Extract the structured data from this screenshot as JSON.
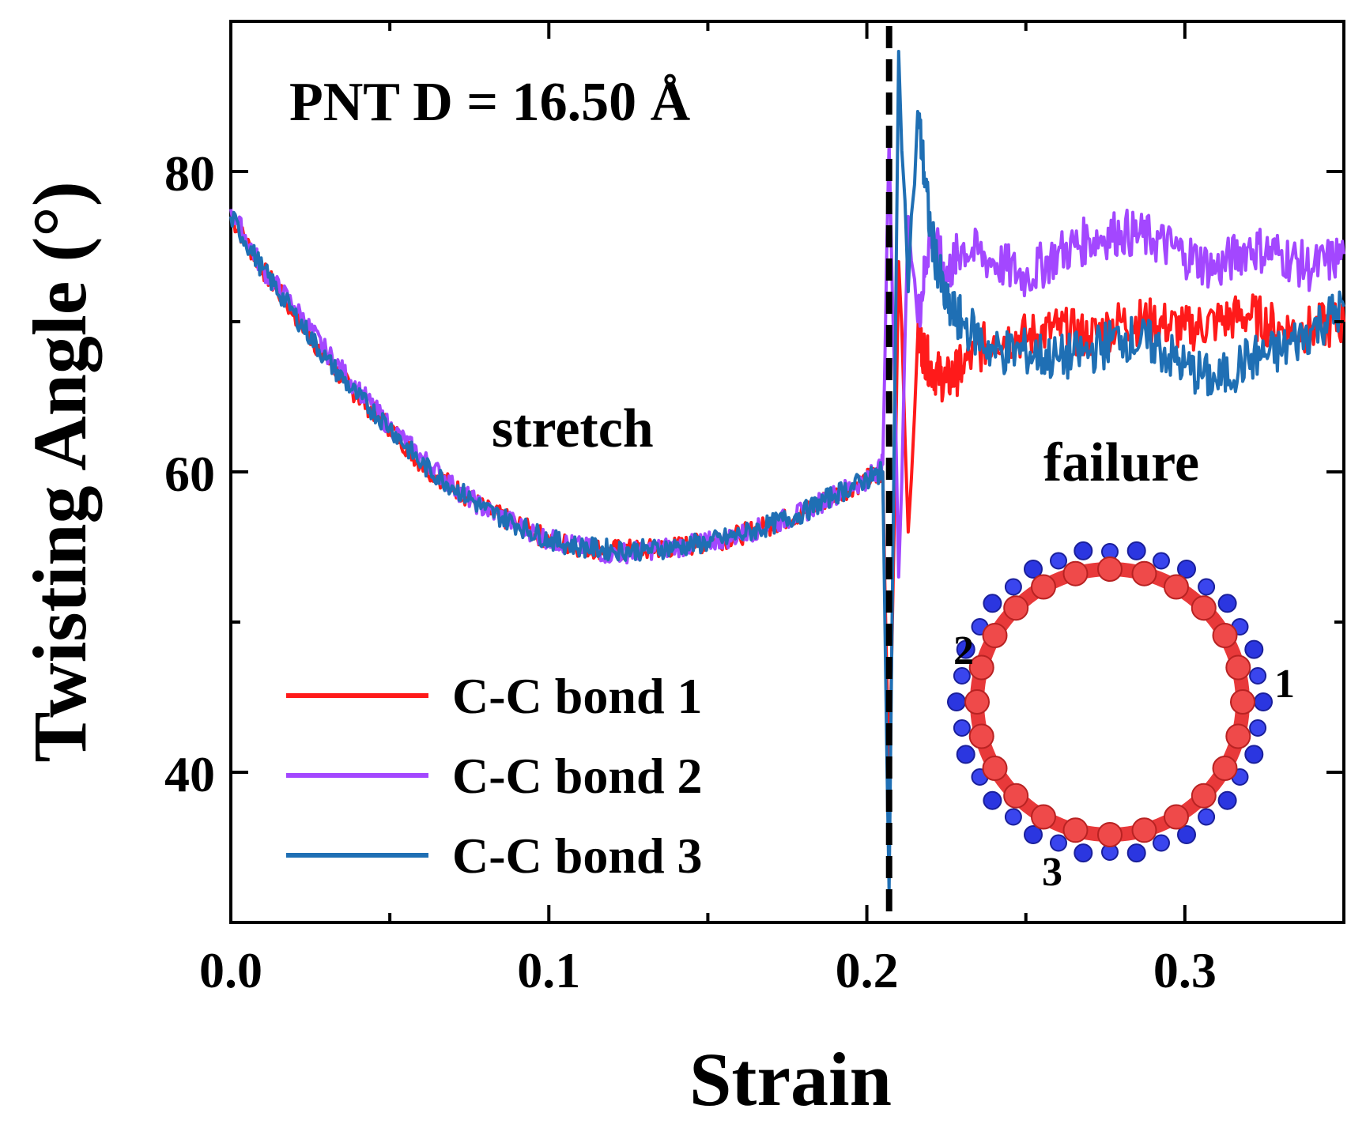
{
  "chart_data": {
    "type": "line",
    "title": "",
    "xlabel": "Strain",
    "ylabel": "Twisting Angle (°)",
    "xlim": [
      0.0,
      0.35
    ],
    "ylim": [
      30,
      90
    ],
    "x_ticks": [
      {
        "value": 0.0,
        "label": "0.0"
      },
      {
        "value": 0.1,
        "label": "0.1"
      },
      {
        "value": 0.2,
        "label": "0.2"
      },
      {
        "value": 0.3,
        "label": "0.3"
      }
    ],
    "y_ticks": [
      {
        "value": 40,
        "label": "40"
      },
      {
        "value": 60,
        "label": "60"
      },
      {
        "value": 80,
        "label": "80"
      }
    ],
    "annotations": {
      "system": "PNT  D = 16.50 Å",
      "stretch": "stretch",
      "failure": "failure"
    },
    "failure_strain": 0.207,
    "series": [
      {
        "name": "C-C bond 1",
        "color": "#ff1a1a",
        "x": [
          0.0,
          0.01,
          0.02,
          0.03,
          0.04,
          0.05,
          0.06,
          0.07,
          0.08,
          0.09,
          0.1,
          0.11,
          0.12,
          0.13,
          0.14,
          0.15,
          0.16,
          0.17,
          0.18,
          0.19,
          0.2,
          0.205,
          0.207,
          0.21,
          0.213,
          0.216,
          0.22,
          0.225,
          0.23,
          0.24,
          0.25,
          0.26,
          0.27,
          0.28,
          0.29,
          0.3,
          0.31,
          0.32,
          0.33,
          0.34,
          0.35
        ],
        "y": [
          77,
          73.5,
          70.5,
          67.5,
          65,
          63,
          60.5,
          59,
          57.5,
          56.5,
          55.5,
          55,
          54.8,
          54.8,
          55,
          55.3,
          55.8,
          56.5,
          57.3,
          58.5,
          59.5,
          60,
          39,
          74,
          56,
          69,
          67,
          66,
          67,
          69,
          69,
          69.5,
          69,
          70,
          70,
          69.5,
          70,
          70.5,
          69.5,
          69.5,
          70
        ]
      },
      {
        "name": "C-C bond 2",
        "color": "#a347ff",
        "x": [
          0.0,
          0.01,
          0.02,
          0.03,
          0.04,
          0.05,
          0.06,
          0.07,
          0.08,
          0.09,
          0.1,
          0.11,
          0.12,
          0.13,
          0.14,
          0.15,
          0.16,
          0.17,
          0.18,
          0.19,
          0.2,
          0.205,
          0.207,
          0.21,
          0.213,
          0.216,
          0.22,
          0.225,
          0.23,
          0.24,
          0.25,
          0.26,
          0.27,
          0.28,
          0.29,
          0.3,
          0.31,
          0.32,
          0.33,
          0.34,
          0.35
        ],
        "y": [
          77.5,
          73.5,
          71,
          68,
          65.5,
          63,
          61,
          59,
          57.5,
          56.5,
          55.5,
          55,
          54.5,
          54.8,
          55,
          55.3,
          55.8,
          56.5,
          57.3,
          58.5,
          59.5,
          60.5,
          82,
          53,
          77,
          70,
          76,
          73,
          75,
          74,
          73,
          74.5,
          75.5,
          76,
          75.5,
          74.5,
          73.5,
          75,
          74.5,
          73.5,
          74.5
        ]
      },
      {
        "name": "C-C bond 3",
        "color": "#1f6fb4",
        "x": [
          0.0,
          0.01,
          0.02,
          0.03,
          0.04,
          0.05,
          0.06,
          0.07,
          0.08,
          0.09,
          0.1,
          0.11,
          0.12,
          0.13,
          0.14,
          0.15,
          0.16,
          0.17,
          0.18,
          0.19,
          0.2,
          0.205,
          0.207,
          0.21,
          0.213,
          0.216,
          0.22,
          0.225,
          0.23,
          0.24,
          0.25,
          0.26,
          0.27,
          0.28,
          0.29,
          0.3,
          0.31,
          0.32,
          0.33,
          0.34,
          0.35
        ],
        "y": [
          77,
          73.5,
          70.5,
          67.5,
          65,
          63,
          60.5,
          59,
          57.5,
          56.5,
          55.5,
          55,
          54.8,
          54.8,
          55,
          55.3,
          55.8,
          56.5,
          57.3,
          58.5,
          59.5,
          60,
          32,
          88,
          72,
          84,
          76,
          71,
          70,
          68,
          68,
          67.5,
          68,
          69,
          68.5,
          67,
          66,
          67.5,
          68,
          69.5,
          71
        ]
      }
    ],
    "inset": {
      "description_labels": [
        "1",
        "2",
        "3"
      ]
    }
  }
}
